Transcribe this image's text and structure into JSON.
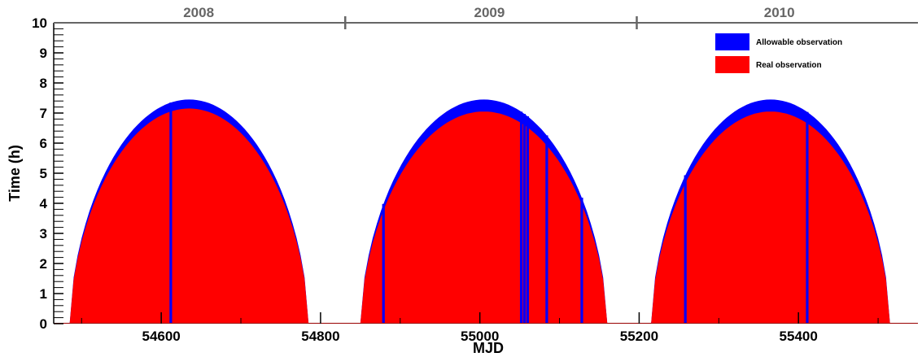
{
  "chart_data": {
    "type": "bar",
    "xlabel": "MJD",
    "ylabel": "Time (h)",
    "xlim": [
      54465,
      55550
    ],
    "ylim": [
      0,
      10
    ],
    "x_ticks": [
      54600,
      54800,
      55000,
      55200,
      55400
    ],
    "x_tick_labels": [
      "54600",
      "54800",
      "55000",
      "55200",
      "55400"
    ],
    "y_ticks": [
      0,
      1,
      2,
      3,
      4,
      5,
      6,
      7,
      8,
      9,
      10
    ],
    "y_tick_labels": [
      "0",
      "1",
      "2",
      "3",
      "4",
      "5",
      "6",
      "7",
      "8",
      "9",
      "10"
    ],
    "top_axis": {
      "labels": [
        "2008",
        "2009",
        "2010"
      ],
      "label_positions_mjd": [
        54647,
        55012,
        55376
      ],
      "boundaries_mjd": [
        54831,
        55197
      ],
      "color": "#666666"
    },
    "legend_position": "top-right",
    "series": [
      {
        "name": "Allowable observation",
        "color": "#0000ff",
        "seasons": [
          {
            "start": 54485,
            "end": 54785,
            "peak": 7.45
          },
          {
            "start": 54850,
            "end": 55160,
            "peak": 7.45
          },
          {
            "start": 55215,
            "end": 55515,
            "peak": 7.45
          }
        ]
      },
      {
        "name": "Real observation",
        "color": "#ff0000",
        "seasons": [
          {
            "start": 54485,
            "end": 54785,
            "peak": 7.15
          },
          {
            "start": 54850,
            "end": 55160,
            "peak": 7.05
          },
          {
            "start": 55215,
            "end": 55515,
            "peak": 7.05
          }
        ],
        "gaps_mjd": [
          54612,
          54879,
          55052,
          55056,
          55060,
          55084,
          55128,
          55258,
          55411
        ]
      }
    ]
  }
}
